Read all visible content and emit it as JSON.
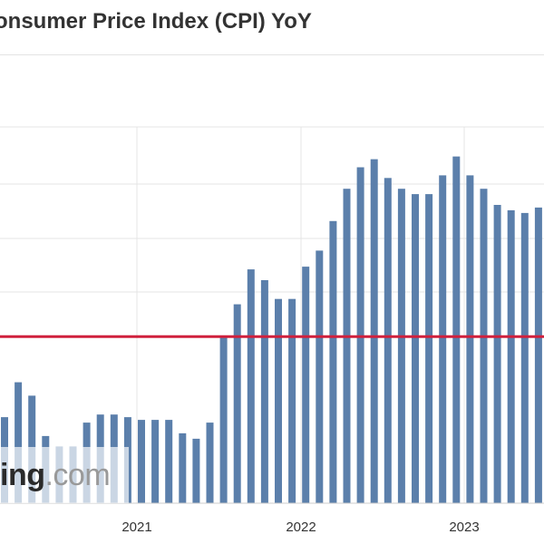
{
  "title": "onsumer Price Index (CPI) YoY",
  "watermark": {
    "bold": "ing",
    "light": ".com"
  },
  "colors": {
    "bar": "#5b7fab",
    "reference_line": "#d0203d",
    "grid": "#e4e4e4",
    "background": "#ffffff"
  },
  "chart_data": {
    "type": "bar",
    "title": "onsumer Price Index (CPI) YoY",
    "xlabel": "",
    "ylabel": "",
    "x_tick_labels": [
      "2021",
      "2022",
      "2023"
    ],
    "y_tick_labels": [],
    "grid": true,
    "ylim": [
      0,
      7
    ],
    "reference_line": {
      "value": 3.1
    },
    "series": [
      {
        "values": [
          1.6,
          2.25,
          2.0,
          1.25,
          1.05,
          1.05,
          1.5,
          1.65,
          1.65,
          1.6,
          1.55,
          1.55,
          1.55,
          1.3,
          1.2,
          1.5,
          3.1,
          3.7,
          4.35,
          4.15,
          3.8,
          3.8,
          4.4,
          4.7,
          5.25,
          5.85,
          6.25,
          6.4,
          6.05,
          5.85,
          5.75,
          5.75,
          6.1,
          6.45,
          6.1,
          5.85,
          5.55,
          5.45,
          5.4,
          5.5,
          5.4,
          5.2
        ]
      }
    ]
  }
}
